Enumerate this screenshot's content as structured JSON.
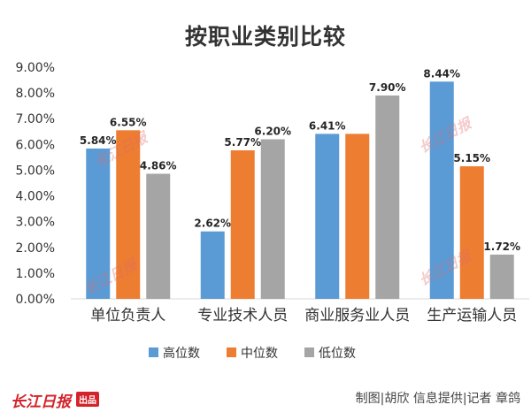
{
  "chart_data": {
    "type": "bar",
    "title": "按职业类别比较",
    "categories": [
      "单位负责人",
      "专业技术人员",
      "商业服务业人员",
      "生产运输人员"
    ],
    "series": [
      {
        "name": "高位数",
        "color": "#5b9bd5",
        "values": [
          5.84,
          2.62,
          6.41,
          8.44
        ],
        "labels": [
          "5.84%",
          "2.62%",
          "6.41%",
          "8.44%"
        ]
      },
      {
        "name": "中位数",
        "color": "#ed7d31",
        "values": [
          6.55,
          5.77,
          6.41,
          5.15
        ],
        "labels": [
          "6.55%",
          "5.77%",
          "",
          "5.15%"
        ]
      },
      {
        "name": "低位数",
        "color": "#a5a5a5",
        "values": [
          4.86,
          6.2,
          7.9,
          1.72
        ],
        "labels": [
          "4.86%",
          "6.20%",
          "7.90%",
          "1.72%"
        ]
      }
    ],
    "ylim": [
      0,
      9
    ],
    "yticks": [
      "0.00%",
      "1.00%",
      "2.00%",
      "3.00%",
      "4.00%",
      "5.00%",
      "6.00%",
      "7.00%",
      "8.00%",
      "9.00%"
    ],
    "grid": false,
    "legend": "bottom"
  },
  "footer": {
    "brand": "长江日报",
    "brand_badge": "出品",
    "credit": "制图|胡欣 信息提供|记者 章鸽"
  },
  "watermark_text": "长江日报"
}
